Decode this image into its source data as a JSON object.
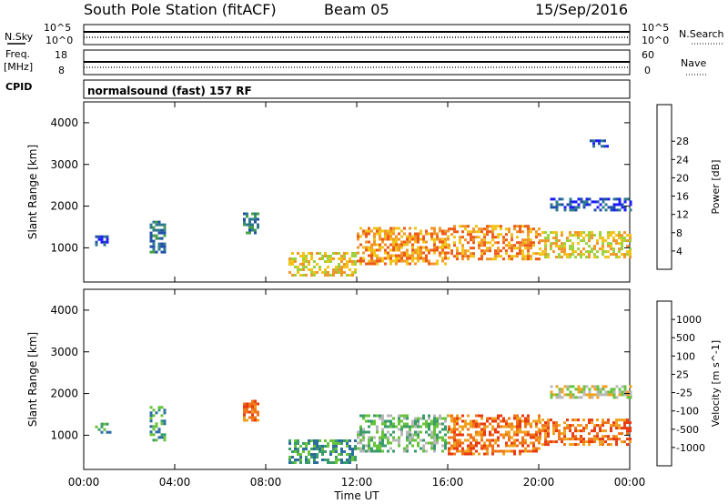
{
  "header": {
    "station": "South Pole Station (fitACF)",
    "beam": "Beam 05",
    "date": "15/Sep/2016"
  },
  "summary": {
    "nsky_label": "N.Sky",
    "nsky_ticks": [
      "10^5",
      "10^0"
    ],
    "nsearch_label": "N.Search",
    "nsearch_ticks": [
      "10^5",
      "10^0"
    ],
    "freq_label_1": "Freq.",
    "freq_label_2": "[MHz]",
    "freq_ticks": [
      "18",
      "8"
    ],
    "nave_label": "Nave",
    "nave_ticks": [
      "60",
      "0"
    ],
    "cpid_label": "CPID",
    "cpid_value": "normalsound (fast) 157 RF"
  },
  "chart_data": [
    {
      "type": "heatmap",
      "title": "",
      "ylabel": "Slant Range [km]",
      "xlabel": "",
      "ylim": [
        180,
        4500
      ],
      "yticks": [
        "1000",
        "2000",
        "3000",
        "4000"
      ],
      "xticks": [
        "00:00",
        "04:00",
        "08:00",
        "12:00",
        "16:00",
        "20:00",
        "00:00"
      ],
      "colorbar": {
        "label": "Power [dB]",
        "ticks": [
          "4",
          "8",
          "12",
          "16",
          "20",
          "24",
          "28"
        ],
        "colors": [
          "#1a1aff",
          "#1f4fa8",
          "#2e7a8c",
          "#43a047",
          "#9cd23c",
          "#f2c318",
          "#f0962a",
          "#ee5a18",
          "#e81a10"
        ]
      },
      "regions": [
        {
          "t0": 0.5,
          "t1": 1.2,
          "r0": 1050,
          "r1": 1300,
          "level": 1
        },
        {
          "t0": 2.9,
          "t1": 3.6,
          "r0": 900,
          "r1": 1650,
          "level": 2
        },
        {
          "t0": 7.0,
          "t1": 7.7,
          "r0": 1350,
          "r1": 1850,
          "level": 2
        },
        {
          "t0": 9.0,
          "t1": 12.0,
          "r0": 350,
          "r1": 900,
          "level": 5
        },
        {
          "t0": 12.0,
          "t1": 16.0,
          "r0": 600,
          "r1": 1500,
          "level": 6
        },
        {
          "t0": 16.0,
          "t1": 20.0,
          "r0": 750,
          "r1": 1550,
          "level": 6
        },
        {
          "t0": 20.0,
          "t1": 24.0,
          "r0": 750,
          "r1": 1400,
          "level": 5
        },
        {
          "t0": 20.5,
          "t1": 24.0,
          "r0": 1900,
          "r1": 2200,
          "level": 1
        },
        {
          "t0": 22.0,
          "t1": 23.0,
          "r0": 3450,
          "r1": 3600,
          "level": 1
        }
      ]
    },
    {
      "type": "heatmap",
      "title": "",
      "ylabel": "Slant Range [km]",
      "xlabel": "Time UT",
      "ylim": [
        180,
        4500
      ],
      "yticks": [
        "1000",
        "2000",
        "3000",
        "4000"
      ],
      "xticks": [
        "00:00",
        "04:00",
        "08:00",
        "12:00",
        "16:00",
        "20:00",
        "00:00"
      ],
      "colorbar": {
        "label": "Velocity [m s^-1]",
        "ticks": [
          "1000",
          "500",
          "100",
          "25",
          "-25",
          "-100",
          "-500",
          "-1000"
        ],
        "colors": [
          "#1f3fa8",
          "#2a6ea0",
          "#3a9c6a",
          "#67c33a",
          "#b7b7b7",
          "#f0a21e",
          "#f07418",
          "#e83a10",
          "#e81010"
        ]
      },
      "regions": [
        {
          "t0": 0.5,
          "t1": 1.2,
          "r0": 1050,
          "r1": 1300,
          "level": 2
        },
        {
          "t0": 2.9,
          "t1": 3.6,
          "r0": 900,
          "r1": 1700,
          "level": 2
        },
        {
          "t0": 7.0,
          "t1": 7.7,
          "r0": 1350,
          "r1": 1850,
          "level": 6
        },
        {
          "t0": 9.0,
          "t1": 12.0,
          "r0": 350,
          "r1": 900,
          "level": 2
        },
        {
          "t0": 12.0,
          "t1": 16.0,
          "r0": 600,
          "r1": 1500,
          "level": 3
        },
        {
          "t0": 16.0,
          "t1": 20.0,
          "r0": 550,
          "r1": 1500,
          "level": 6
        },
        {
          "t0": 20.0,
          "t1": 24.0,
          "r0": 750,
          "r1": 1400,
          "level": 6
        },
        {
          "t0": 20.5,
          "t1": 24.0,
          "r0": 1900,
          "r1": 2200,
          "level": 4
        }
      ]
    }
  ]
}
